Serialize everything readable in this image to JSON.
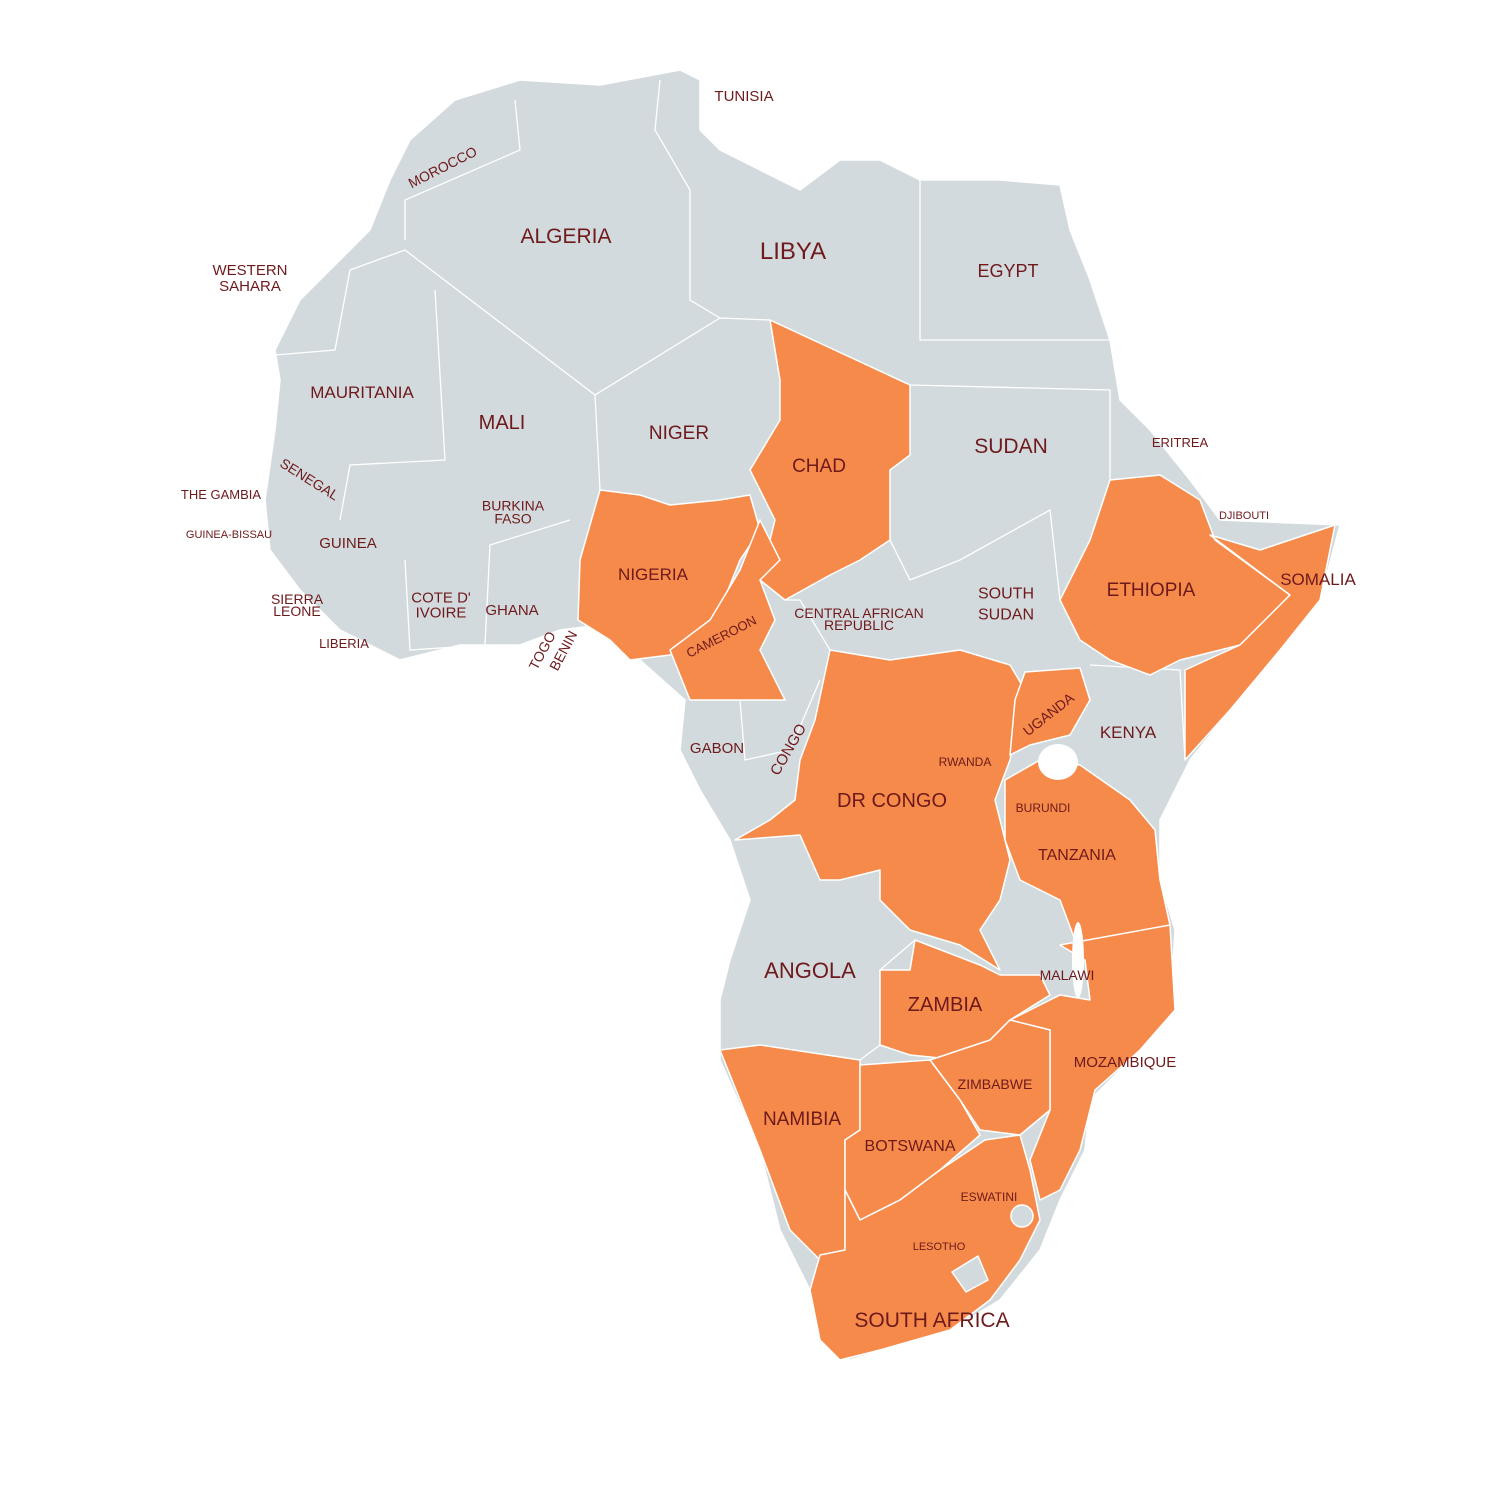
{
  "base_color": "#d3dadd",
  "highlight_color": "#f58a4b",
  "countries": [
    {
      "label": [
        "TUNISIA"
      ],
      "highlighted": false
    },
    {
      "label": [
        "MOROCCO"
      ],
      "highlighted": false
    },
    {
      "label": [
        "ALGERIA"
      ],
      "highlighted": false
    },
    {
      "label": [
        "LIBYA"
      ],
      "highlighted": false
    },
    {
      "label": [
        "EGYPT"
      ],
      "highlighted": false
    },
    {
      "label": [
        "WESTERN",
        "SAHARA"
      ],
      "highlighted": false
    },
    {
      "label": [
        "MAURITANIA"
      ],
      "highlighted": false
    },
    {
      "label": [
        "MALI"
      ],
      "highlighted": false
    },
    {
      "label": [
        "NIGER"
      ],
      "highlighted": false
    },
    {
      "label": [
        "CHAD"
      ],
      "highlighted": true
    },
    {
      "label": [
        "SUDAN"
      ],
      "highlighted": false
    },
    {
      "label": [
        "ERITREA"
      ],
      "highlighted": false
    },
    {
      "label": [
        "SENEGAL"
      ],
      "highlighted": false
    },
    {
      "label": [
        "THE GAMBIA"
      ],
      "highlighted": false
    },
    {
      "label": [
        "GUINEA-BISSAU"
      ],
      "highlighted": false
    },
    {
      "label": [
        "GUINEA"
      ],
      "highlighted": false
    },
    {
      "label": [
        "BURKINA",
        "FASO"
      ],
      "highlighted": false
    },
    {
      "label": [
        "NIGERIA"
      ],
      "highlighted": true
    },
    {
      "label": [
        "DJIBOUTI"
      ],
      "highlighted": false
    },
    {
      "label": [
        "ETHIOPIA"
      ],
      "highlighted": true
    },
    {
      "label": [
        "SOMALIA"
      ],
      "highlighted": true
    },
    {
      "label": [
        "SIERRA",
        "LEONE"
      ],
      "highlighted": false
    },
    {
      "label": [
        "COTE D'",
        "IVOIRE"
      ],
      "highlighted": false
    },
    {
      "label": [
        "GHANA"
      ],
      "highlighted": false
    },
    {
      "label": [
        "CENTRAL AFRICAN",
        "REPUBLIC"
      ],
      "highlighted": false
    },
    {
      "label": [
        "SOUTH",
        "SUDAN"
      ],
      "highlighted": false
    },
    {
      "label": [
        "TOGO"
      ],
      "highlighted": false
    },
    {
      "label": [
        "BENIN"
      ],
      "highlighted": false
    },
    {
      "label": [
        "CAMEROON"
      ],
      "highlighted": true
    },
    {
      "label": [
        "LIBERIA"
      ],
      "highlighted": false
    },
    {
      "label": [
        "UGANDA"
      ],
      "highlighted": true
    },
    {
      "label": [
        "KENYA"
      ],
      "highlighted": false
    },
    {
      "label": [
        "GABON"
      ],
      "highlighted": false
    },
    {
      "label": [
        "CONGO"
      ],
      "highlighted": false
    },
    {
      "label": [
        "RWANDA"
      ],
      "highlighted": false
    },
    {
      "label": [
        "DR CONGO"
      ],
      "highlighted": true
    },
    {
      "label": [
        "BURUNDI"
      ],
      "highlighted": false
    },
    {
      "label": [
        "TANZANIA"
      ],
      "highlighted": true
    },
    {
      "label": [
        "ANGOLA"
      ],
      "highlighted": false
    },
    {
      "label": [
        "MALAWI"
      ],
      "highlighted": false
    },
    {
      "label": [
        "ZAMBIA"
      ],
      "highlighted": true
    },
    {
      "label": [
        "MOZAMBIQUE"
      ],
      "highlighted": true
    },
    {
      "label": [
        "ZIMBABWE"
      ],
      "highlighted": true
    },
    {
      "label": [
        "NAMIBIA"
      ],
      "highlighted": true
    },
    {
      "label": [
        "BOTSWANA"
      ],
      "highlighted": true
    },
    {
      "label": [
        "ESWATINI"
      ],
      "highlighted": false
    },
    {
      "label": [
        "LESOTHO"
      ],
      "highlighted": false
    },
    {
      "label": [
        "SOUTH AFRICA"
      ],
      "highlighted": true
    }
  ]
}
